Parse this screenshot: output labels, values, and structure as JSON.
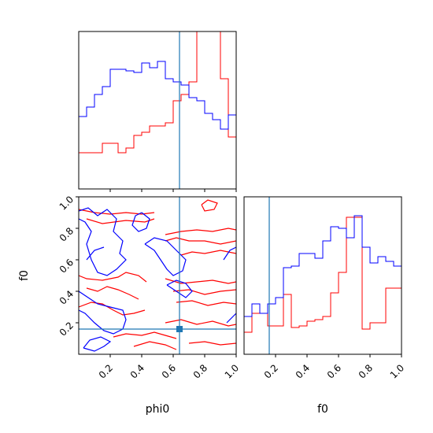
{
  "colors": {
    "red": "#ff0000",
    "blue": "#0000ff",
    "truth": "#1f77b4",
    "axes": "#000000"
  },
  "labels": {
    "x_left": "phi0",
    "x_right": "f0",
    "y_left": "f0"
  },
  "chart_data": [
    {
      "type": "histogram",
      "panel": "phi0-marginal",
      "xlim": [
        0,
        1
      ],
      "bins": 20,
      "truth": 0.64,
      "series": [
        {
          "color": "red",
          "values": [
            0.23,
            0.23,
            0.23,
            0.29,
            0.29,
            0.23,
            0.26,
            0.34,
            0.36,
            0.4,
            0.4,
            0.42,
            0.56,
            0.6,
            0.68,
            1.05,
            1.05,
            1.05,
            0.7,
            0.33
          ]
        },
        {
          "color": "blue",
          "values": [
            0.46,
            0.52,
            0.6,
            0.65,
            0.76,
            0.76,
            0.75,
            0.74,
            0.8,
            0.77,
            0.81,
            0.7,
            0.68,
            0.66,
            0.58,
            0.56,
            0.48,
            0.44,
            0.38,
            0.47
          ]
        }
      ]
    },
    {
      "type": "histogram",
      "panel": "f0-marginal",
      "xlim": [
        0,
        1
      ],
      "bins": 20,
      "truth": 0.16,
      "series": [
        {
          "color": "red",
          "values": [
            0.14,
            0.26,
            0.26,
            0.18,
            0.18,
            0.38,
            0.17,
            0.18,
            0.21,
            0.22,
            0.24,
            0.39,
            0.52,
            0.87,
            0.87,
            0.16,
            0.2,
            0.2,
            0.42,
            0.42
          ]
        },
        {
          "color": "blue",
          "values": [
            0.24,
            0.32,
            0.26,
            0.32,
            0.36,
            0.55,
            0.56,
            0.64,
            0.64,
            0.61,
            0.72,
            0.81,
            0.8,
            0.74,
            0.88,
            0.68,
            0.58,
            0.62,
            0.59,
            0.56
          ]
        }
      ]
    },
    {
      "type": "contour",
      "panel": "phi0-vs-f0",
      "xlim": [
        0,
        1
      ],
      "ylim": [
        0,
        1
      ],
      "truth": {
        "x": 0.64,
        "y": 0.16
      },
      "xticks": [
        "0.2",
        "0.4",
        "0.6",
        "0.8",
        "1.0"
      ],
      "yticks": [
        "0.2",
        "0.4",
        "0.6",
        "0.8",
        "1.0"
      ]
    }
  ],
  "contours": {
    "red": [
      [
        [
          0.0,
          0.92
        ],
        [
          0.1,
          0.9
        ],
        [
          0.2,
          0.89
        ],
        [
          0.3,
          0.9
        ],
        [
          0.4,
          0.89
        ],
        [
          0.48,
          0.9
        ]
      ],
      [
        [
          0.05,
          0.86
        ],
        [
          0.15,
          0.83
        ],
        [
          0.3,
          0.85
        ],
        [
          0.42,
          0.84
        ],
        [
          0.48,
          0.86
        ]
      ],
      [
        [
          0.0,
          0.5
        ],
        [
          0.05,
          0.48
        ],
        [
          0.15,
          0.47
        ],
        [
          0.25,
          0.49
        ],
        [
          0.3,
          0.52
        ],
        [
          0.38,
          0.5
        ],
        [
          0.43,
          0.46
        ]
      ],
      [
        [
          0.05,
          0.42
        ],
        [
          0.12,
          0.4
        ],
        [
          0.18,
          0.43
        ],
        [
          0.25,
          0.41
        ],
        [
          0.32,
          0.38
        ],
        [
          0.38,
          0.35
        ]
      ],
      [
        [
          0.0,
          0.3
        ],
        [
          0.08,
          0.33
        ],
        [
          0.15,
          0.32
        ],
        [
          0.22,
          0.28
        ],
        [
          0.28,
          0.25
        ],
        [
          0.35,
          0.26
        ],
        [
          0.42,
          0.28
        ]
      ],
      [
        [
          0.22,
          0.11
        ],
        [
          0.3,
          0.13
        ],
        [
          0.4,
          0.12
        ],
        [
          0.48,
          0.14
        ],
        [
          0.55,
          0.12
        ],
        [
          0.62,
          0.1
        ]
      ],
      [
        [
          0.35,
          0.05
        ],
        [
          0.45,
          0.08
        ],
        [
          0.55,
          0.06
        ],
        [
          0.62,
          0.03
        ]
      ],
      [
        [
          0.55,
          0.76
        ],
        [
          0.65,
          0.78
        ],
        [
          0.75,
          0.79
        ],
        [
          0.85,
          0.78
        ],
        [
          0.95,
          0.8
        ],
        [
          1.0,
          0.79
        ]
      ],
      [
        [
          0.55,
          0.72
        ],
        [
          0.62,
          0.74
        ],
        [
          0.7,
          0.72
        ],
        [
          0.8,
          0.72
        ],
        [
          0.9,
          0.7
        ],
        [
          1.0,
          0.72
        ]
      ],
      [
        [
          0.65,
          0.63
        ],
        [
          0.72,
          0.65
        ],
        [
          0.8,
          0.64
        ],
        [
          0.9,
          0.66
        ],
        [
          1.0,
          0.64
        ]
      ],
      [
        [
          0.55,
          0.48
        ],
        [
          0.65,
          0.45
        ],
        [
          0.75,
          0.46
        ],
        [
          0.85,
          0.47
        ],
        [
          0.95,
          0.45
        ],
        [
          1.0,
          0.46
        ]
      ],
      [
        [
          0.6,
          0.4
        ],
        [
          0.7,
          0.41
        ],
        [
          0.8,
          0.38
        ],
        [
          0.9,
          0.4
        ],
        [
          1.0,
          0.41
        ]
      ],
      [
        [
          0.62,
          0.33
        ],
        [
          0.72,
          0.34
        ],
        [
          0.82,
          0.31
        ],
        [
          0.92,
          0.33
        ],
        [
          1.0,
          0.32
        ]
      ],
      [
        [
          0.55,
          0.2
        ],
        [
          0.65,
          0.22
        ],
        [
          0.75,
          0.19
        ],
        [
          0.85,
          0.21
        ],
        [
          0.95,
          0.18
        ],
        [
          1.0,
          0.19
        ]
      ],
      [
        [
          0.7,
          0.07
        ],
        [
          0.8,
          0.08
        ],
        [
          0.9,
          0.06
        ],
        [
          1.0,
          0.07
        ]
      ],
      [
        [
          0.78,
          0.95
        ],
        [
          0.82,
          0.98
        ],
        [
          0.88,
          0.96
        ],
        [
          0.86,
          0.92
        ],
        [
          0.8,
          0.91
        ],
        [
          0.78,
          0.95
        ]
      ]
    ],
    "blue": [
      [
        [
          0.0,
          0.91
        ],
        [
          0.06,
          0.93
        ],
        [
          0.12,
          0.88
        ],
        [
          0.18,
          0.92
        ],
        [
          0.24,
          0.86
        ],
        [
          0.22,
          0.78
        ],
        [
          0.28,
          0.72
        ],
        [
          0.26,
          0.64
        ],
        [
          0.3,
          0.6
        ],
        [
          0.24,
          0.54
        ],
        [
          0.18,
          0.5
        ],
        [
          0.12,
          0.52
        ],
        [
          0.08,
          0.6
        ],
        [
          0.05,
          0.7
        ],
        [
          0.08,
          0.78
        ],
        [
          0.04,
          0.84
        ],
        [
          0.0,
          0.86
        ]
      ],
      [
        [
          0.0,
          0.4
        ],
        [
          0.06,
          0.36
        ],
        [
          0.12,
          0.32
        ],
        [
          0.2,
          0.3
        ],
        [
          0.28,
          0.28
        ],
        [
          0.3,
          0.22
        ],
        [
          0.28,
          0.16
        ],
        [
          0.22,
          0.13
        ],
        [
          0.16,
          0.15
        ],
        [
          0.1,
          0.2
        ],
        [
          0.04,
          0.26
        ],
        [
          0.0,
          0.28
        ]
      ],
      [
        [
          0.03,
          0.04
        ],
        [
          0.1,
          0.02
        ],
        [
          0.16,
          0.05
        ],
        [
          0.2,
          0.08
        ],
        [
          0.14,
          0.11
        ],
        [
          0.07,
          0.09
        ],
        [
          0.03,
          0.04
        ]
      ],
      [
        [
          0.4,
          0.9
        ],
        [
          0.45,
          0.86
        ],
        [
          0.43,
          0.8
        ],
        [
          0.38,
          0.78
        ],
        [
          0.34,
          0.82
        ],
        [
          0.36,
          0.88
        ],
        [
          0.4,
          0.9
        ]
      ],
      [
        [
          0.42,
          0.7
        ],
        [
          0.48,
          0.66
        ],
        [
          0.52,
          0.6
        ],
        [
          0.56,
          0.54
        ],
        [
          0.6,
          0.5
        ],
        [
          0.66,
          0.53
        ],
        [
          0.68,
          0.6
        ],
        [
          0.62,
          0.66
        ],
        [
          0.56,
          0.72
        ],
        [
          0.48,
          0.74
        ],
        [
          0.42,
          0.7
        ]
      ],
      [
        [
          0.56,
          0.44
        ],
        [
          0.62,
          0.4
        ],
        [
          0.68,
          0.36
        ],
        [
          0.72,
          0.4
        ],
        [
          0.68,
          0.45
        ],
        [
          0.62,
          0.47
        ],
        [
          0.56,
          0.44
        ]
      ],
      [
        [
          0.92,
          0.6
        ],
        [
          0.96,
          0.66
        ],
        [
          1.0,
          0.68
        ]
      ],
      [
        [
          0.94,
          0.2
        ],
        [
          0.98,
          0.24
        ],
        [
          1.0,
          0.26
        ]
      ],
      [
        [
          0.05,
          0.6
        ],
        [
          0.1,
          0.66
        ],
        [
          0.16,
          0.68
        ]
      ]
    ]
  }
}
